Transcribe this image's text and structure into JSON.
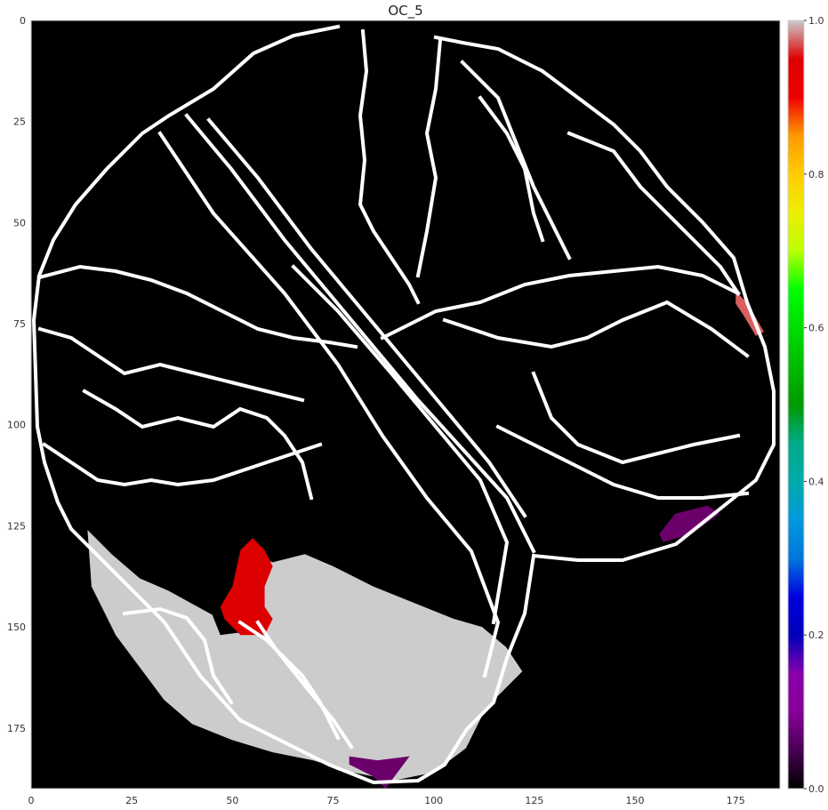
{
  "chart_data": {
    "type": "heatmap",
    "title": "OC_5",
    "xlabel": "",
    "ylabel": "",
    "xlim": [
      0,
      186
    ],
    "ylim": [
      190,
      0
    ],
    "x_ticks": [
      0,
      25,
      50,
      75,
      100,
      125,
      150,
      175
    ],
    "y_ticks": [
      0,
      25,
      50,
      75,
      100,
      125,
      150,
      175
    ],
    "colorbar": {
      "colormap": "nipy_spectral",
      "range": [
        0.0,
        1.0
      ],
      "ticks": [
        "0.0",
        "0.2",
        "0.4",
        "0.6",
        "0.8",
        "1.0"
      ]
    },
    "background_value": 0.0,
    "outline_color": "#ffffff",
    "highlighted_regions": [
      {
        "value": 0.8,
        "color": "#cccccc",
        "polygon": [
          [
            14,
            126
          ],
          [
            20,
            132
          ],
          [
            27,
            138
          ],
          [
            34,
            141
          ],
          [
            45,
            147
          ],
          [
            47,
            152
          ],
          [
            55,
            151
          ],
          [
            52,
            140
          ],
          [
            55,
            132
          ],
          [
            60,
            134
          ],
          [
            68,
            132
          ],
          [
            75,
            135
          ],
          [
            85,
            140
          ],
          [
            95,
            144
          ],
          [
            105,
            148
          ],
          [
            112,
            150
          ],
          [
            118,
            155
          ],
          [
            122,
            161
          ],
          [
            113,
            170
          ],
          [
            108,
            180
          ],
          [
            100,
            186
          ],
          [
            90,
            188
          ],
          [
            80,
            186
          ],
          [
            70,
            183
          ],
          [
            60,
            181
          ],
          [
            50,
            178
          ],
          [
            40,
            174
          ],
          [
            33,
            168
          ],
          [
            27,
            160
          ],
          [
            21,
            152
          ],
          [
            15,
            140
          ]
        ]
      },
      {
        "value": 0.9,
        "color": "#dd0000",
        "polygon": [
          [
            52,
            131
          ],
          [
            55,
            128
          ],
          [
            58,
            131
          ],
          [
            60,
            135
          ],
          [
            58,
            140
          ],
          [
            58,
            145
          ],
          [
            60,
            148
          ],
          [
            58,
            152
          ],
          [
            52,
            152
          ],
          [
            48,
            148
          ],
          [
            47,
            145
          ],
          [
            50,
            140
          ]
        ]
      },
      {
        "value": 0.05,
        "color": "#6b006b",
        "polygon": [
          [
            79,
            182
          ],
          [
            86,
            183
          ],
          [
            94,
            182
          ],
          [
            91,
            186
          ],
          [
            88,
            190
          ],
          [
            85,
            187
          ],
          [
            79,
            184
          ]
        ]
      },
      {
        "value": 0.05,
        "color": "#6b006b",
        "polygon": [
          [
            156,
            127
          ],
          [
            160,
            122
          ],
          [
            168,
            120
          ],
          [
            171,
            122
          ],
          [
            164,
            127
          ],
          [
            157,
            129
          ]
        ]
      },
      {
        "value": 0.82,
        "color": "#d96060",
        "polygon": [
          [
            175,
            67
          ],
          [
            178,
            70
          ],
          [
            182,
            77
          ],
          [
            180,
            78
          ],
          [
            177,
            73
          ],
          [
            175,
            70
          ]
        ]
      }
    ]
  }
}
